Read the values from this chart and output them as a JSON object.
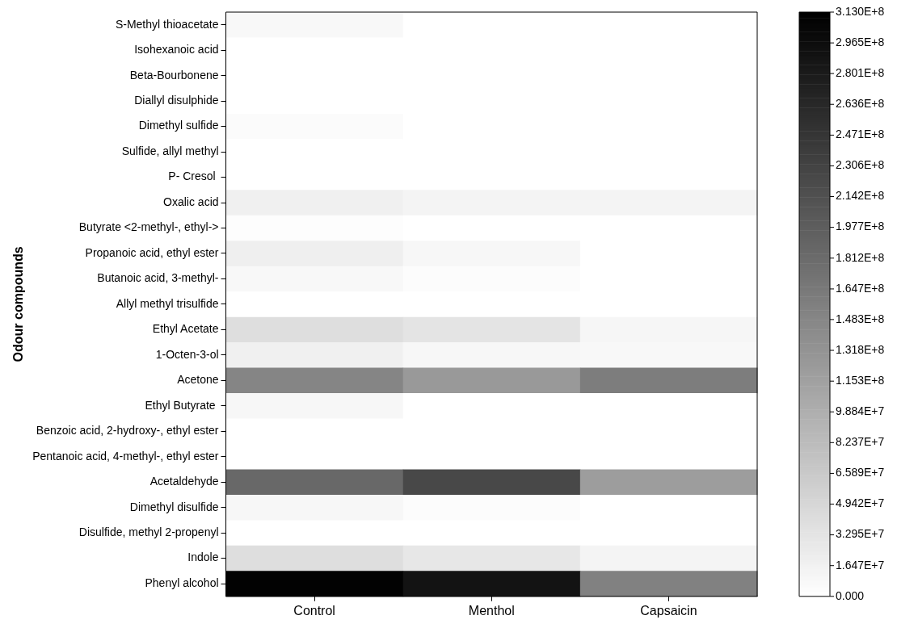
{
  "chart_data": {
    "type": "heatmap",
    "ylabel": "Odour compounds",
    "categories": [
      "Control",
      "Menthol",
      "Capsaicin"
    ],
    "y_categories": [
      "S-Methyl thioacetate",
      "Isohexanoic acid",
      "Beta-Bourbonene",
      "Diallyl disulphide",
      "Dimethyl sulfide",
      "Sulfide, allyl methyl",
      "P- Cresol ",
      "Oxalic acid",
      "Butyrate <2-methyl-, ethyl->",
      "Propanoic acid, ethyl ester",
      "Butanoic acid, 3-methyl-",
      "Allyl methyl trisulfide",
      "Ethyl Acetate",
      "1-Octen-3-ol",
      "Acetone",
      "Ethyl Butyrate ",
      "Benzoic acid, 2-hydroxy-, ethyl ester",
      "Pentanoic acid, 4-methyl-, ethyl ester",
      "Acetaldehyde",
      "Dimethyl disulfide",
      "Disulfide, methyl 2-propenyl",
      "Indole",
      "Phenyl alcohol"
    ],
    "cells": [
      [
        8000000,
        0,
        0
      ],
      [
        0,
        0,
        0
      ],
      [
        0,
        0,
        0
      ],
      [
        0,
        0,
        0
      ],
      [
        5000000,
        0,
        0
      ],
      [
        0,
        0,
        0
      ],
      [
        0,
        0,
        0
      ],
      [
        18000000,
        14000000,
        14000000
      ],
      [
        3000000,
        0,
        0
      ],
      [
        20000000,
        10000000,
        0
      ],
      [
        8000000,
        4000000,
        0
      ],
      [
        0,
        0,
        0
      ],
      [
        40000000,
        33000000,
        11000000
      ],
      [
        18000000,
        10000000,
        9000000
      ],
      [
        150000000,
        125000000,
        160000000
      ],
      [
        10000000,
        0,
        0
      ],
      [
        0,
        0,
        0
      ],
      [
        0,
        0,
        0
      ],
      [
        185000000,
        225000000,
        120000000
      ],
      [
        10000000,
        4000000,
        0
      ],
      [
        0,
        0,
        0
      ],
      [
        40000000,
        30000000,
        13000000
      ],
      [
        310000000,
        290000000,
        155000000
      ]
    ],
    "clim": [
      0,
      313000000
    ],
    "cticks": [
      {
        "value": 0,
        "label": "0.000"
      },
      {
        "value": 16470000,
        "label": "1.647E+7"
      },
      {
        "value": 32950000,
        "label": "3.295E+7"
      },
      {
        "value": 49420000,
        "label": "4.942E+7"
      },
      {
        "value": 65890000,
        "label": "6.589E+7"
      },
      {
        "value": 82370000,
        "label": "8.237E+7"
      },
      {
        "value": 98840000,
        "label": "9.884E+7"
      },
      {
        "value": 115300000,
        "label": "1.153E+8"
      },
      {
        "value": 131800000,
        "label": "1.318E+8"
      },
      {
        "value": 148300000,
        "label": "1.483E+8"
      },
      {
        "value": 164700000,
        "label": "1.647E+8"
      },
      {
        "value": 181200000,
        "label": "1.812E+8"
      },
      {
        "value": 197700000,
        "label": "1.977E+8"
      },
      {
        "value": 214200000,
        "label": "2.142E+8"
      },
      {
        "value": 230600000,
        "label": "2.306E+8"
      },
      {
        "value": 247100000,
        "label": "2.471E+8"
      },
      {
        "value": 263600000,
        "label": "2.636E+8"
      },
      {
        "value": 280100000,
        "label": "2.801E+8"
      },
      {
        "value": 296500000,
        "label": "2.965E+8"
      },
      {
        "value": 313000000,
        "label": "3.130E+8"
      }
    ]
  }
}
